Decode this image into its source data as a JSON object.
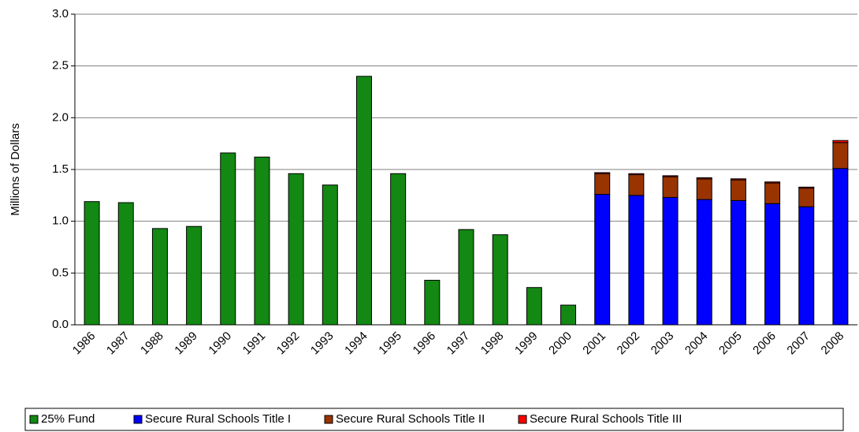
{
  "chart_data": {
    "type": "stacked_bar",
    "y_label": "Millions of Dollars",
    "categories": [
      "1986",
      "1987",
      "1988",
      "1989",
      "1990",
      "1991",
      "1992",
      "1993",
      "1994",
      "1995",
      "1996",
      "1997",
      "1998",
      "1999",
      "2000",
      "2001",
      "2002",
      "2003",
      "2004",
      "2005",
      "2006",
      "2007",
      "2008"
    ],
    "series": [
      {
        "name": "25% Fund",
        "color": "#138813",
        "values": [
          1.19,
          1.18,
          0.93,
          0.95,
          1.66,
          1.62,
          1.46,
          1.35,
          2.4,
          1.46,
          0.43,
          0.92,
          0.87,
          0.36,
          0.19,
          null,
          null,
          null,
          null,
          null,
          null,
          null,
          null
        ]
      },
      {
        "name": "Secure Rural Schools Title I",
        "color": "#0000ff",
        "values": [
          null,
          null,
          null,
          null,
          null,
          null,
          null,
          null,
          null,
          null,
          null,
          null,
          null,
          null,
          null,
          1.26,
          1.25,
          1.23,
          1.21,
          1.2,
          1.17,
          1.14,
          1.51
        ]
      },
      {
        "name": "Secure Rural Schools Title II",
        "color": "#993300",
        "values": [
          null,
          null,
          null,
          null,
          null,
          null,
          null,
          null,
          null,
          null,
          null,
          null,
          null,
          null,
          null,
          0.2,
          0.2,
          0.2,
          0.2,
          0.2,
          0.2,
          0.18,
          0.25
        ]
      },
      {
        "name": "Secure Rural Schools Title III",
        "color": "#ff0000",
        "values": [
          null,
          null,
          null,
          null,
          null,
          null,
          null,
          null,
          null,
          null,
          null,
          null,
          null,
          null,
          null,
          0.01,
          0.01,
          0.01,
          0.01,
          0.01,
          0.01,
          0.01,
          0.02
        ]
      }
    ],
    "ylim": [
      0,
      3
    ],
    "yticks": [
      {
        "value": 0,
        "label": "0.0"
      },
      0.5,
      {
        "value": 1,
        "label": "1.0"
      },
      1.5,
      {
        "value": 2,
        "label": "2.0"
      },
      2.5,
      {
        "value": 3,
        "label": "3.0"
      }
    ],
    "grid": true,
    "legend": "bottom"
  }
}
